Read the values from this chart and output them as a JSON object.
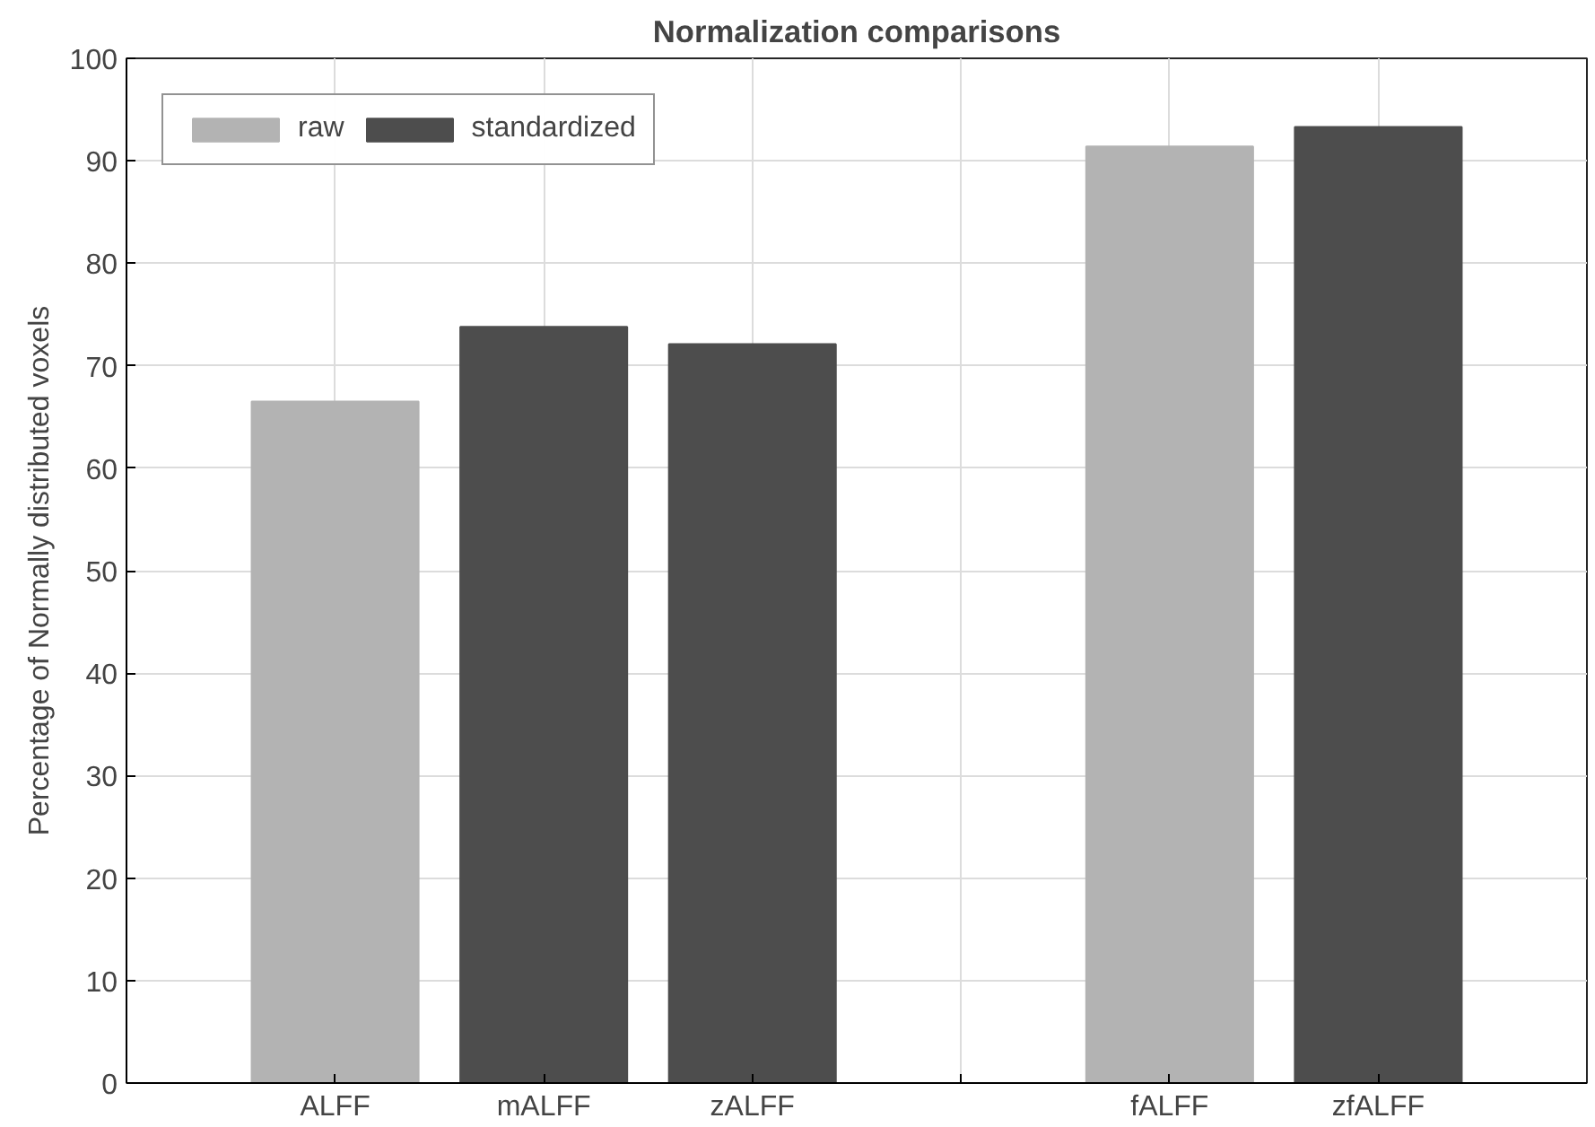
{
  "chart_data": {
    "type": "bar",
    "title": "Normalization comparisons",
    "ylabel": "Percentage of Normally distributed voxels",
    "categories": [
      "ALFF",
      "mALFF",
      "zALFF",
      null,
      "fALFF",
      "zfALFF"
    ],
    "series": [
      {
        "name": "raw",
        "color": "#b3b3b3",
        "values": [
          66.5,
          null,
          null,
          null,
          91.4,
          null
        ]
      },
      {
        "name": "standardized",
        "color": "#4d4d4d",
        "values": [
          null,
          73.8,
          72.1,
          null,
          null,
          93.3
        ]
      }
    ],
    "stacked": true,
    "ylim": [
      0,
      100
    ],
    "yticks": [
      0,
      10,
      20,
      30,
      40,
      50,
      60,
      70,
      80,
      90,
      100
    ],
    "grid": true,
    "legend": "top left"
  }
}
